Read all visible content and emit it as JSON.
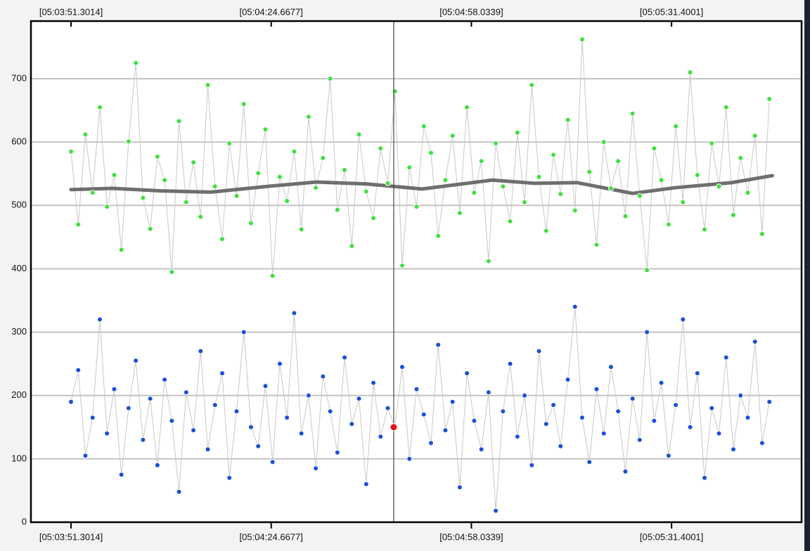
{
  "chart_data": {
    "type": "scatter",
    "xlim": [
      18224.62,
      18353.07
    ],
    "xticks": [
      {
        "value": 18231.3014,
        "label": "[05:03:51.3014]"
      },
      {
        "value": 18264.6677,
        "label": "[05:04:24.6677]"
      },
      {
        "value": 18298.0339,
        "label": "[05:04:58.0339]"
      },
      {
        "value": 18331.4001,
        "label": "[05:05:31.4001]"
      }
    ],
    "ylim": [
      0,
      791
    ],
    "yticks": [
      0,
      100,
      200,
      300,
      400,
      500,
      600,
      700
    ],
    "grid": true,
    "x": [
      18231.3,
      18232.5,
      18233.7,
      18234.9,
      18236.1,
      18237.3,
      18238.5,
      18239.7,
      18240.9,
      18242.1,
      18243.3,
      18244.5,
      18245.7,
      18246.9,
      18248.1,
      18249.3,
      18250.5,
      18251.7,
      18252.9,
      18254.1,
      18255.3,
      18256.5,
      18257.7,
      18258.9,
      18260.1,
      18261.3,
      18262.5,
      18263.7,
      18264.9,
      18266.1,
      18267.3,
      18268.5,
      18269.7,
      18270.9,
      18272.1,
      18273.3,
      18274.5,
      18275.7,
      18276.9,
      18278.1,
      18279.3,
      18280.5,
      18281.7,
      18282.9,
      18284.1,
      18285.3,
      18286.5,
      18287.7,
      18288.9,
      18290.1,
      18291.3,
      18292.5,
      18293.7,
      18294.9,
      18296.1,
      18297.3,
      18298.5,
      18299.7,
      18300.9,
      18302.1,
      18303.3,
      18304.5,
      18305.7,
      18306.9,
      18308.1,
      18309.3,
      18310.5,
      18311.7,
      18312.9,
      18314.1,
      18315.3,
      18316.5,
      18317.7,
      18318.9,
      18320.1,
      18321.3,
      18322.5,
      18323.7,
      18324.9,
      18326.1,
      18327.3,
      18328.5,
      18329.7,
      18330.9,
      18332.1,
      18333.3,
      18334.5,
      18335.7,
      18336.9,
      18338.1,
      18339.3,
      18340.5,
      18341.7,
      18342.9,
      18344.1,
      18345.3,
      18346.5,
      18347.7
    ],
    "series": [
      {
        "color": "#3fe03f",
        "style": "points",
        "values": [
          585,
          470,
          612,
          520,
          655,
          498,
          548,
          430,
          601,
          725,
          512,
          463,
          577,
          540,
          395,
          633,
          505,
          568,
          482,
          690,
          530,
          447,
          598,
          515,
          660,
          472,
          551,
          620,
          389,
          545,
          507,
          585,
          462,
          640,
          528,
          575,
          700,
          493,
          556,
          436,
          612,
          522,
          480,
          590,
          535,
          680,
          405,
          560,
          498,
          625,
          583,
          452,
          540,
          610,
          488,
          655,
          520,
          570,
          412,
          598,
          530,
          475,
          615,
          505,
          690,
          545,
          460,
          580,
          518,
          635,
          492,
          762,
          553,
          438,
          600,
          527,
          570,
          483,
          645,
          515,
          398,
          590,
          540,
          470,
          625,
          505,
          710,
          548,
          462,
          598,
          530,
          655,
          485,
          575,
          520,
          610,
          455,
          668
        ]
      },
      {
        "color": "#1d4fd8",
        "style": "points",
        "values": [
          190,
          240,
          105,
          165,
          320,
          140,
          210,
          75,
          180,
          255,
          130,
          195,
          90,
          225,
          160,
          48,
          205,
          145,
          270,
          115,
          185,
          235,
          70,
          175,
          300,
          150,
          120,
          215,
          95,
          250,
          165,
          330,
          140,
          200,
          85,
          230,
          175,
          110,
          260,
          155,
          195,
          60,
          220,
          135,
          180,
          150,
          245,
          100,
          210,
          170,
          125,
          280,
          145,
          190,
          55,
          235,
          160,
          115,
          205,
          18,
          175,
          250,
          135,
          200,
          90,
          270,
          155,
          185,
          120,
          225,
          340,
          165,
          95,
          210,
          140,
          245,
          175,
          80,
          195,
          130,
          300,
          160,
          220,
          105,
          185,
          320,
          150,
          235,
          70,
          180,
          140,
          260,
          115,
          200,
          165,
          285,
          125,
          190
        ]
      },
      {
        "color": "#6e6e6e",
        "style": "line",
        "x": [
          18231.3,
          18238.2,
          18246.4,
          18254.6,
          18264.0,
          18272.2,
          18280.4,
          18289.8,
          18301.5,
          18308.5,
          18315.6,
          18324.9,
          18332.0,
          18341.4,
          18348.2
        ],
        "values": [
          525,
          527,
          523,
          521,
          530,
          537,
          534,
          526,
          540,
          535,
          536,
          519,
          528,
          536,
          547
        ]
      }
    ],
    "cursor": {
      "x": 18285.09,
      "y": 150,
      "color": "#e8141a"
    }
  }
}
